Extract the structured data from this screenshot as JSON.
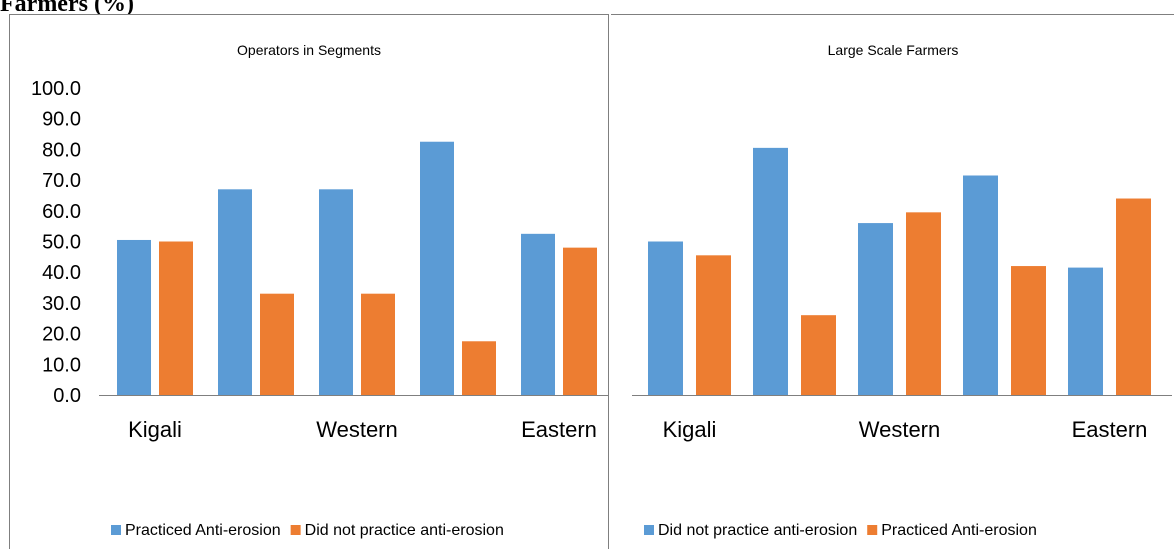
{
  "heading": "Farmers (%)",
  "colors": {
    "blue": "#5b9bd5",
    "orange": "#ed7d31",
    "axis": "#7f7f7f"
  },
  "chart_data": [
    {
      "type": "bar",
      "title": "Operators in Segments",
      "categories": [
        "Kigali",
        "",
        "Western",
        "",
        "Eastern"
      ],
      "ylim": [
        0,
        100
      ],
      "yticks": [
        "0.0",
        "10.0",
        "20.0",
        "30.0",
        "40.0",
        "50.0",
        "60.0",
        "70.0",
        "80.0",
        "90.0",
        "100.0"
      ],
      "grid": false,
      "legend": "bottom",
      "series": [
        {
          "name": "Practiced Anti-erosion",
          "color": "#5b9bd5",
          "values": [
            50.5,
            67.0,
            67.0,
            82.5,
            52.5
          ]
        },
        {
          "name": "Did not practice anti-erosion",
          "color": "#ed7d31",
          "values": [
            50.0,
            33.0,
            33.0,
            17.5,
            48.0
          ]
        }
      ]
    },
    {
      "type": "bar",
      "title": "Large Scale Farmers",
      "categories": [
        "Kigali",
        "",
        "Western",
        "",
        "Eastern"
      ],
      "ylim": [
        0,
        100
      ],
      "grid": false,
      "legend": "bottom",
      "series": [
        {
          "name": "Did not practice anti-erosion",
          "color": "#5b9bd5",
          "values": [
            50.0,
            80.5,
            56.0,
            71.5,
            41.5
          ]
        },
        {
          "name": "Practiced Anti-erosion",
          "color": "#ed7d31",
          "values": [
            45.5,
            26.0,
            59.5,
            42.0,
            64.0
          ]
        }
      ]
    }
  ]
}
